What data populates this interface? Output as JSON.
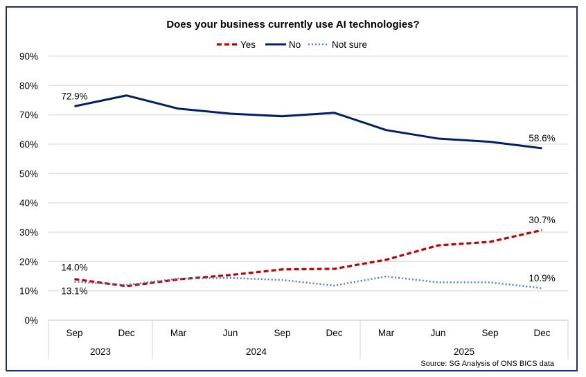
{
  "chart_data": {
    "type": "line",
    "title": "Does your business currently use AI technologies?",
    "x": [
      "Sep 2023",
      "Dec 2023",
      "Mar 2024",
      "Jun 2024",
      "Sep 2024",
      "Dec 2024",
      "Mar 2025",
      "Jun 2025",
      "Sep 2025",
      "Dec 2025"
    ],
    "tick_labels": [
      "Sep",
      "Dec",
      "Mar",
      "Jun",
      "Sep",
      "Dec",
      "Mar",
      "Jun",
      "Sep",
      "Dec"
    ],
    "year_groups": [
      {
        "label": "2023",
        "start": 0,
        "end": 1
      },
      {
        "label": "2024",
        "start": 2,
        "end": 5
      },
      {
        "label": "2025",
        "start": 6,
        "end": 9
      }
    ],
    "ylim": [
      0,
      90
    ],
    "yticks": [
      "0%",
      "10%",
      "20%",
      "30%",
      "40%",
      "50%",
      "60%",
      "70%",
      "80%",
      "90%"
    ],
    "grid": true,
    "legend_position": "top",
    "series": [
      {
        "name": "Yes",
        "color": "#c00000",
        "style": "dashed",
        "values": [
          14.0,
          11.6,
          13.9,
          15.4,
          17.3,
          17.5,
          20.6,
          25.5,
          26.7,
          30.7
        ],
        "labels": [
          {
            "index": 0,
            "text": "14.0%"
          },
          {
            "index": 9,
            "text": "30.7%"
          }
        ]
      },
      {
        "name": "No",
        "color": "#002060",
        "style": "solid",
        "values": [
          72.9,
          76.6,
          72.1,
          70.4,
          69.5,
          70.7,
          64.8,
          61.9,
          60.8,
          58.6
        ],
        "labels": [
          {
            "index": 0,
            "text": "72.9%"
          },
          {
            "index": 9,
            "text": "58.6%"
          }
        ]
      },
      {
        "name": "Not sure",
        "color": "#4a7fd0",
        "style": "dotted",
        "values": [
          13.1,
          12.0,
          14.2,
          14.4,
          13.7,
          11.8,
          14.9,
          12.9,
          12.9,
          10.9
        ],
        "labels": [
          {
            "index": 0,
            "text": "13.1%"
          },
          {
            "index": 9,
            "text": "10.9%"
          }
        ]
      }
    ],
    "source": "Source: SG Analysis of ONS BICS data"
  }
}
